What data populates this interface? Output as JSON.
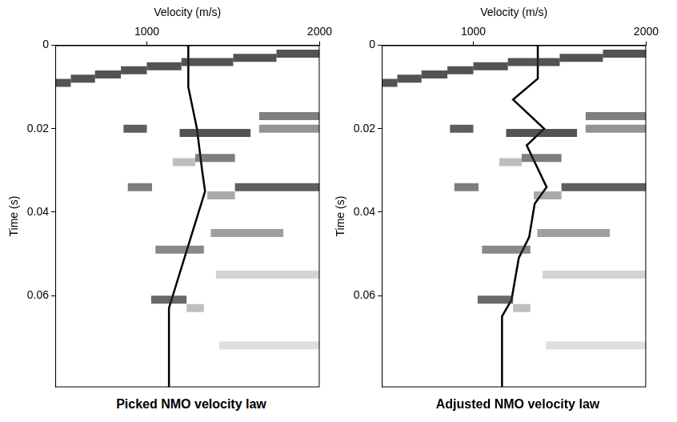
{
  "chart_data": [
    {
      "type": "line",
      "title": "Picked NMO velocity law",
      "xlabel": "Velocity (m/s)",
      "ylabel": "Time (s)",
      "xlim": [
        470,
        2000
      ],
      "ylim": [
        0.082,
        0
      ],
      "xticks": [
        1000,
        2000
      ],
      "yticks": [
        0,
        0.02,
        0.04,
        0.06
      ],
      "grid": false,
      "series": [
        {
          "color": "#000000",
          "x": [
            1240,
            1240,
            1290,
            1320,
            1337,
            1128,
            1128
          ],
          "values": [
            0,
            0.01,
            0.02,
            0.03,
            0.035,
            0.063,
            0.082
          ]
        }
      ],
      "semblance": [
        {
          "t": 0.009,
          "v": [
            470,
            560
          ],
          "level": 0.8
        },
        {
          "t": 0.008,
          "v": [
            560,
            700
          ],
          "level": 0.8
        },
        {
          "t": 0.007,
          "v": [
            700,
            850
          ],
          "level": 0.8
        },
        {
          "t": 0.006,
          "v": [
            850,
            1000
          ],
          "level": 0.8
        },
        {
          "t": 0.005,
          "v": [
            1000,
            1200
          ],
          "level": 0.8
        },
        {
          "t": 0.004,
          "v": [
            1200,
            1500
          ],
          "level": 0.8
        },
        {
          "t": 0.003,
          "v": [
            1500,
            1750
          ],
          "level": 0.8
        },
        {
          "t": 0.002,
          "v": [
            1750,
            2000
          ],
          "level": 0.8
        },
        {
          "t": 0.017,
          "v": [
            1650,
            2000
          ],
          "level": 0.6
        },
        {
          "t": 0.02,
          "v": [
            865,
            1000
          ],
          "level": 0.75
        },
        {
          "t": 0.021,
          "v": [
            1190,
            1600
          ],
          "level": 0.8
        },
        {
          "t": 0.02,
          "v": [
            1650,
            2000
          ],
          "level": 0.5
        },
        {
          "t": 0.027,
          "v": [
            1280,
            1510
          ],
          "level": 0.6
        },
        {
          "t": 0.028,
          "v": [
            1150,
            1280
          ],
          "level": 0.3
        },
        {
          "t": 0.034,
          "v": [
            890,
            1030
          ],
          "level": 0.6
        },
        {
          "t": 0.034,
          "v": [
            1510,
            2000
          ],
          "level": 0.75
        },
        {
          "t": 0.036,
          "v": [
            1350,
            1510
          ],
          "level": 0.4
        },
        {
          "t": 0.045,
          "v": [
            1370,
            1790
          ],
          "level": 0.45
        },
        {
          "t": 0.049,
          "v": [
            1050,
            1330
          ],
          "level": 0.55
        },
        {
          "t": 0.055,
          "v": [
            1400,
            2000
          ],
          "level": 0.2
        },
        {
          "t": 0.061,
          "v": [
            1025,
            1230
          ],
          "level": 0.7
        },
        {
          "t": 0.063,
          "v": [
            1230,
            1330
          ],
          "level": 0.3
        },
        {
          "t": 0.072,
          "v": [
            1420,
            2000
          ],
          "level": 0.15
        }
      ]
    },
    {
      "type": "line",
      "title": "Adjusted NMO velocity law",
      "xlabel": "Velocity (m/s)",
      "ylabel": "Time (s)",
      "xlim": [
        470,
        2000
      ],
      "ylim": [
        0.082,
        0
      ],
      "xticks": [
        1000,
        2000
      ],
      "yticks": [
        0,
        0.02,
        0.04,
        0.06
      ],
      "grid": false,
      "series": [
        {
          "color": "#000000",
          "x": [
            1373,
            1373,
            1230,
            1410,
            1309,
            1424,
            1355,
            1323,
            1263,
            1221,
            1166,
            1166
          ],
          "values": [
            0,
            0.008,
            0.013,
            0.02,
            0.024,
            0.034,
            0.038,
            0.046,
            0.051,
            0.061,
            0.065,
            0.082
          ]
        }
      ],
      "semblance": [
        {
          "t": 0.009,
          "v": [
            470,
            560
          ],
          "level": 0.8
        },
        {
          "t": 0.008,
          "v": [
            560,
            700
          ],
          "level": 0.8
        },
        {
          "t": 0.007,
          "v": [
            700,
            850
          ],
          "level": 0.8
        },
        {
          "t": 0.006,
          "v": [
            850,
            1000
          ],
          "level": 0.8
        },
        {
          "t": 0.005,
          "v": [
            1000,
            1200
          ],
          "level": 0.8
        },
        {
          "t": 0.004,
          "v": [
            1200,
            1500
          ],
          "level": 0.8
        },
        {
          "t": 0.003,
          "v": [
            1500,
            1750
          ],
          "level": 0.8
        },
        {
          "t": 0.002,
          "v": [
            1750,
            2000
          ],
          "level": 0.8
        },
        {
          "t": 0.017,
          "v": [
            1650,
            2000
          ],
          "level": 0.6
        },
        {
          "t": 0.02,
          "v": [
            865,
            1000
          ],
          "level": 0.75
        },
        {
          "t": 0.021,
          "v": [
            1190,
            1600
          ],
          "level": 0.8
        },
        {
          "t": 0.02,
          "v": [
            1650,
            2000
          ],
          "level": 0.5
        },
        {
          "t": 0.027,
          "v": [
            1280,
            1510
          ],
          "level": 0.6
        },
        {
          "t": 0.028,
          "v": [
            1150,
            1280
          ],
          "level": 0.3
        },
        {
          "t": 0.034,
          "v": [
            890,
            1030
          ],
          "level": 0.6
        },
        {
          "t": 0.034,
          "v": [
            1510,
            2000
          ],
          "level": 0.75
        },
        {
          "t": 0.036,
          "v": [
            1350,
            1510
          ],
          "level": 0.4
        },
        {
          "t": 0.045,
          "v": [
            1370,
            1790
          ],
          "level": 0.45
        },
        {
          "t": 0.049,
          "v": [
            1050,
            1330
          ],
          "level": 0.55
        },
        {
          "t": 0.055,
          "v": [
            1400,
            2000
          ],
          "level": 0.2
        },
        {
          "t": 0.061,
          "v": [
            1025,
            1230
          ],
          "level": 0.7
        },
        {
          "t": 0.063,
          "v": [
            1230,
            1330
          ],
          "level": 0.3
        },
        {
          "t": 0.072,
          "v": [
            1420,
            2000
          ],
          "level": 0.15
        }
      ]
    }
  ]
}
